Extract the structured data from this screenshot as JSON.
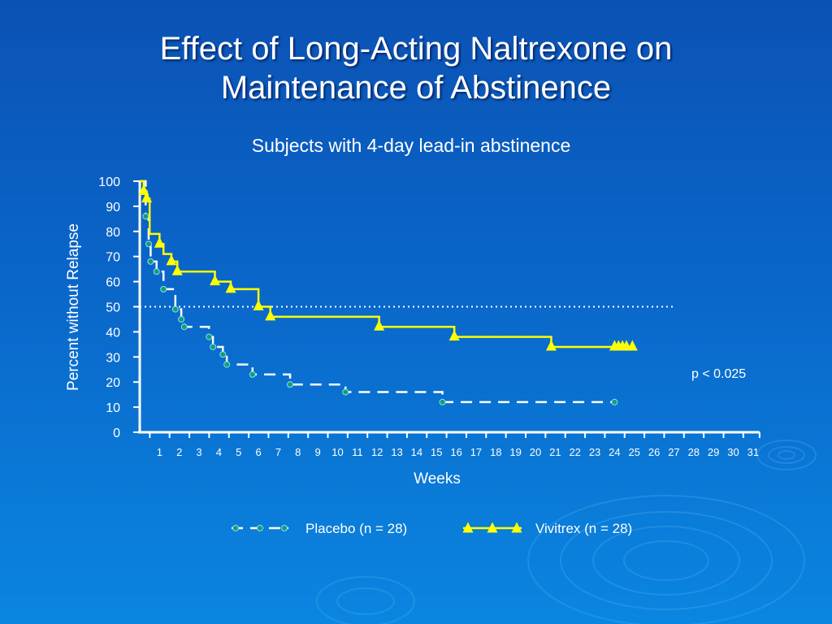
{
  "slide": {
    "title_line1": "Effect of Long-Acting Naltrexone on",
    "title_line2": "Maintenance of Abstinence",
    "subtitle": "Subjects with 4-day lead-in abstinence"
  },
  "colors": {
    "placebo": "#ffffff",
    "placebo_marker": "#1a9b6c",
    "vivitrex": "#ffff00",
    "axis": "#ffffff",
    "reference_line": "#ffffff"
  },
  "chart_data": {
    "type": "line",
    "subtype": "kaplan-meier step",
    "title": "Subjects with 4-day lead-in abstinence",
    "xlabel": "Weeks",
    "ylabel": "Percent without Relapse",
    "xlim": [
      0,
      31
    ],
    "ylim": [
      0,
      100
    ],
    "x_ticks": [
      1,
      2,
      3,
      4,
      5,
      6,
      7,
      8,
      9,
      10,
      11,
      12,
      13,
      14,
      15,
      16,
      17,
      18,
      19,
      20,
      21,
      22,
      23,
      24,
      25,
      26,
      27,
      28,
      29,
      30,
      31
    ],
    "y_ticks": [
      0,
      10,
      20,
      30,
      40,
      50,
      60,
      70,
      80,
      90,
      100
    ],
    "reference_line": {
      "y": 50,
      "style": "dotted",
      "x_end": 27
    },
    "annotation": "p < 0.025",
    "series": [
      {
        "name": "Placebo (n = 28)",
        "style": "dashed",
        "marker": "circle",
        "steps": [
          [
            0,
            100
          ],
          [
            0.3,
            86
          ],
          [
            0.45,
            75
          ],
          [
            0.55,
            68
          ],
          [
            0.85,
            64
          ],
          [
            1.2,
            57
          ],
          [
            1.8,
            49
          ],
          [
            2.1,
            45
          ],
          [
            2.25,
            42
          ],
          [
            3.5,
            38
          ],
          [
            3.7,
            34
          ],
          [
            4.2,
            31
          ],
          [
            4.4,
            27
          ],
          [
            5.7,
            23
          ],
          [
            7.6,
            19
          ],
          [
            10.4,
            16
          ],
          [
            15.3,
            12
          ],
          [
            24.0,
            12
          ]
        ],
        "markers": [
          [
            0.3,
            86
          ],
          [
            0.45,
            75
          ],
          [
            0.55,
            68
          ],
          [
            0.85,
            64
          ],
          [
            1.2,
            57
          ],
          [
            1.8,
            49
          ],
          [
            2.1,
            45
          ],
          [
            2.25,
            42
          ],
          [
            3.5,
            38
          ],
          [
            3.7,
            34
          ],
          [
            4.2,
            31
          ],
          [
            4.4,
            27
          ],
          [
            5.7,
            23
          ],
          [
            7.6,
            19
          ],
          [
            10.4,
            16
          ],
          [
            15.3,
            12
          ],
          [
            24.0,
            12
          ]
        ]
      },
      {
        "name": "Vivitrex (n = 28)",
        "style": "solid",
        "marker": "triangle",
        "steps": [
          [
            0,
            100
          ],
          [
            0.2,
            96
          ],
          [
            0.35,
            93
          ],
          [
            0.5,
            79
          ],
          [
            1.0,
            75
          ],
          [
            1.2,
            71
          ],
          [
            1.6,
            68
          ],
          [
            1.9,
            64
          ],
          [
            3.8,
            60
          ],
          [
            4.6,
            57
          ],
          [
            6.0,
            50
          ],
          [
            6.6,
            46
          ],
          [
            12.1,
            42
          ],
          [
            15.9,
            38
          ],
          [
            20.8,
            34
          ],
          [
            24.9,
            34
          ]
        ],
        "markers": [
          [
            0.2,
            96
          ],
          [
            0.35,
            93
          ],
          [
            1.0,
            75
          ],
          [
            1.6,
            68
          ],
          [
            1.9,
            64
          ],
          [
            3.8,
            60
          ],
          [
            4.6,
            57
          ],
          [
            6.0,
            50
          ],
          [
            6.6,
            46
          ],
          [
            12.1,
            42
          ],
          [
            15.9,
            38
          ],
          [
            20.8,
            34
          ],
          [
            24.0,
            34
          ],
          [
            24.2,
            34
          ],
          [
            24.4,
            34
          ],
          [
            24.6,
            34
          ],
          [
            24.9,
            34
          ]
        ]
      }
    ],
    "legend": [
      {
        "label": "Placebo (n = 28)",
        "style": "dashed",
        "marker": "circle"
      },
      {
        "label": "Vivitrex (n = 28)",
        "style": "solid",
        "marker": "triangle"
      }
    ],
    "legend_position": "bottom-center"
  }
}
